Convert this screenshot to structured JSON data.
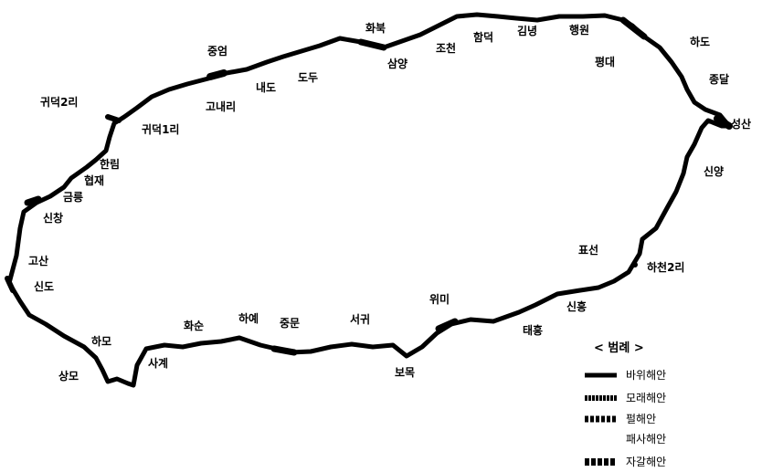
{
  "places": {
    "gwideok2": "귀덕2리",
    "jungeom": "중엄",
    "hwabuk": "화북",
    "hamdeok": "함덕",
    "gimnyeong": "김녕",
    "haengwon": "행원",
    "hado": "하도",
    "pyeongdae": "평대",
    "jongdal": "종달",
    "seongsan": "성산",
    "sinyang": "신양",
    "pyoseon": "표선",
    "hacheon2": "하천2리",
    "sinheung": "신흥",
    "taeheung": "태흥",
    "wimi": "위미",
    "bomok": "보목",
    "seogwi": "서귀",
    "jungmun": "중문",
    "hayea": "하예",
    "hwasun": "화순",
    "sagye": "사계",
    "hamo": "하모",
    "sangmo": "상모",
    "sindo": "신도",
    "gosan": "고산",
    "sinchang": "신창",
    "geumneung": "금릉",
    "hyeopjae": "협재",
    "hallim": "한림",
    "gwideok1": "귀덕1리",
    "gonae": "고내리",
    "naedo": "내도",
    "dodu": "도두",
    "samyang": "삼양",
    "jocheon": "조천"
  },
  "legend": {
    "title": "< 범례 >",
    "items": [
      {
        "label": "바위해안",
        "style": "rock"
      },
      {
        "label": "모래해안",
        "style": "sand"
      },
      {
        "label": "펄해안",
        "style": "mud"
      },
      {
        "label": "패사해안",
        "style": "shell"
      },
      {
        "label": "자갈해안",
        "style": "gravel"
      }
    ]
  }
}
